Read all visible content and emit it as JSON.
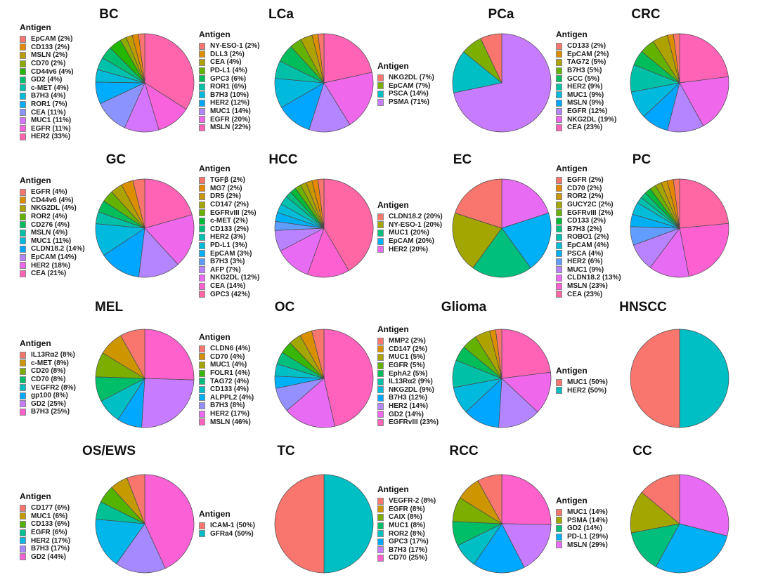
{
  "legend_title": "Antigen",
  "chart_data": [
    {
      "type": "pie",
      "title": "BC",
      "categories": [
        "EpCAM",
        "CD133",
        "MSLN",
        "CD70",
        "CD44v6",
        "GD2",
        "c-MET",
        "B7H3",
        "ROR1",
        "CEA",
        "MUC1",
        "EGFR",
        "HER2"
      ],
      "values": [
        2,
        2,
        2,
        2,
        4,
        4,
        4,
        4,
        7,
        11,
        11,
        11,
        33
      ],
      "labels": [
        "EpCAM (2%)",
        "CD133 (2%)",
        "MSLN (2%)",
        "CD70 (2%)",
        "CD44v6 (4%)",
        "GD2 (4%)",
        "c-MET (4%)",
        "B7H3 (4%)",
        "ROR1 (7%)",
        "CEA (11%)",
        "MUC1 (11%)",
        "EGFR (11%)",
        "HER2 (33%)"
      ]
    },
    {
      "type": "pie",
      "title": "LCa",
      "categories": [
        "NY-ESO-1",
        "DLL3",
        "CEA",
        "PD-L1",
        "GPC3",
        "ROR1",
        "B7H3",
        "HER2",
        "MUC1",
        "EGFR",
        "MSLN"
      ],
      "values": [
        2,
        2,
        4,
        4,
        6,
        6,
        10,
        12,
        14,
        20,
        22
      ],
      "labels": [
        "NY-ESO-1 (2%)",
        "DLL3 (2%)",
        "CEA (4%)",
        "PD-L1 (4%)",
        "GPC3 (6%)",
        "ROR1 (6%)",
        "B7H3 (10%)",
        "HER2 (12%)",
        "MUC1 (14%)",
        "EGFR (20%)",
        "MSLN (22%)"
      ]
    },
    {
      "type": "pie",
      "title": "PCa",
      "categories": [
        "NKG2DL",
        "EpCAM",
        "PSCA",
        "PSMA"
      ],
      "values": [
        7,
        7,
        14,
        71
      ],
      "labels": [
        "NKG2DL (7%)",
        "EpCAM (7%)",
        "PSCA (14%)",
        "PSMA (71%)"
      ]
    },
    {
      "type": "pie",
      "title": "CRC",
      "categories": [
        "CD133",
        "EpCAM",
        "TAG72",
        "B7H3",
        "GCC",
        "HER2",
        "MUC1",
        "MSLN",
        "EGFR",
        "NKG2DL",
        "CEA"
      ],
      "values": [
        2,
        2,
        5,
        5,
        5,
        9,
        9,
        9,
        12,
        19,
        23
      ],
      "labels": [
        "CD133 (2%)",
        "EpCAM (2%)",
        "TAG72 (5%)",
        "B7H3 (5%)",
        "GCC (5%)",
        "HER2 (9%)",
        "MUC1 (9%)",
        "MSLN (9%)",
        "EGFR (12%)",
        "NKG2DL (19%)",
        "CEA (23%)"
      ]
    },
    {
      "type": "pie",
      "title": "GC",
      "categories": [
        "EGFR",
        "CD44v6",
        "NKG2DL",
        "ROR2",
        "CD276",
        "MSLN",
        "MUC1",
        "CLDN18.2",
        "EpCAM",
        "HER2",
        "CEA"
      ],
      "values": [
        4,
        4,
        4,
        4,
        4,
        4,
        11,
        14,
        14,
        18,
        21
      ],
      "labels": [
        "EGFR (4%)",
        "CD44v6 (4%)",
        "NKG2DL (4%)",
        "ROR2 (4%)",
        "CD276 (4%)",
        "MSLN (4%)",
        "MUC1 (11%)",
        "CLDN18.2 (14%)",
        "EpCAM (14%)",
        "HER2 (18%)",
        "CEA (21%)"
      ]
    },
    {
      "type": "pie",
      "title": "HCC",
      "categories": [
        "TGFβ",
        "MG7",
        "DR5",
        "CD147",
        "EGFRvIII",
        "c-MET",
        "CD133",
        "HER2",
        "PD-L1",
        "EpCAM",
        "B7H3",
        "AFP",
        "NKG2DL",
        "CEA",
        "GPC3"
      ],
      "values": [
        2,
        2,
        2,
        2,
        2,
        2,
        2,
        3,
        3,
        3,
        3,
        7,
        12,
        14,
        42
      ],
      "labels": [
        "TGFβ (2%)",
        "MG7 (2%)",
        "DR5 (2%)",
        "CD147 (2%)",
        "EGFRvIII (2%)",
        "c-MET (2%)",
        "CD133 (2%)",
        "HER2 (3%)",
        "PD-L1 (3%)",
        "EpCAM (3%)",
        "B7H3 (3%)",
        "AFP (7%)",
        "NKG2DL (12%)",
        "CEA (14%)",
        "GPC3 (42%)"
      ]
    },
    {
      "type": "pie",
      "title": "EC",
      "categories": [
        "CLDN18.2",
        "NY-ESO-1",
        "MUC1",
        "EpCAM",
        "HER2"
      ],
      "values": [
        20,
        20,
        20,
        20,
        20
      ],
      "labels": [
        "CLDN18.2 (20%)",
        "NY-ESO-1 (20%)",
        "MUC1 (20%)",
        "EpCAM (20%)",
        "HER2 (20%)"
      ]
    },
    {
      "type": "pie",
      "title": "PC",
      "categories": [
        "EGFR",
        "CD70",
        "ROR2",
        "GUCY2C",
        "EGFRvIII",
        "CD133",
        "B7H3",
        "ROBO1",
        "EpCAM",
        "PSCA",
        "HER2",
        "MUC1",
        "CLDN18.2",
        "MSLN",
        "CEA"
      ],
      "values": [
        2,
        2,
        2,
        2,
        2,
        2,
        2,
        2,
        4,
        4,
        6,
        9,
        13,
        23,
        23
      ],
      "labels": [
        "EGFR (2%)",
        "CD70 (2%)",
        "ROR2 (2%)",
        "GUCY2C (2%)",
        "EGFRvIII (2%)",
        "CD133 (2%)",
        "B7H3 (2%)",
        "ROBO1 (2%)",
        "EpCAM (4%)",
        "PSCA (4%)",
        "HER2 (6%)",
        "MUC1 (9%)",
        "CLDN18.2 (13%)",
        "MSLN (23%)",
        "CEA (23%)"
      ]
    },
    {
      "type": "pie",
      "title": "MEL",
      "categories": [
        "IL13Rα2",
        "c-MET",
        "CD20",
        "CD70",
        "VEGFR2",
        "gp100",
        "GD2",
        "B7H3"
      ],
      "values": [
        8,
        8,
        8,
        8,
        8,
        8,
        25,
        25
      ],
      "labels": [
        "IL13Rα2 (8%)",
        "c-MET (8%)",
        "CD20 (8%)",
        "CD70 (8%)",
        "VEGFR2 (8%)",
        "gp100 (8%)",
        "GD2 (25%)",
        "B7H3 (25%)"
      ]
    },
    {
      "type": "pie",
      "title": "OC",
      "categories": [
        "CLDN6",
        "CD70",
        "MUC1",
        "FOLR1",
        "TAG72",
        "CD133",
        "ALPPL2",
        "B7H3",
        "HER2",
        "MSLN"
      ],
      "values": [
        4,
        4,
        4,
        4,
        4,
        4,
        4,
        8,
        17,
        46
      ],
      "labels": [
        "CLDN6 (4%)",
        "CD70 (4%)",
        "MUC1 (4%)",
        "FOLR1 (4%)",
        "TAG72 (4%)",
        "CD133 (4%)",
        "ALPPL2 (4%)",
        "B7H3 (8%)",
        "HER2 (17%)",
        "MSLN (46%)"
      ]
    },
    {
      "type": "pie",
      "title": "Glioma",
      "categories": [
        "MMP2",
        "CD147",
        "MUC1",
        "EGFR",
        "EphA2",
        "IL13Rα2",
        "NKG2DL",
        "B7H3",
        "HER2",
        "GD2",
        "EGFRvIII"
      ],
      "values": [
        2,
        2,
        5,
        5,
        5,
        9,
        9,
        12,
        14,
        14,
        23
      ],
      "labels": [
        "MMP2 (2%)",
        "CD147 (2%)",
        "MUC1 (5%)",
        "EGFR (5%)",
        "EphA2 (5%)",
        "IL13Rα2 (9%)",
        "NKG2DL (9%)",
        "B7H3 (12%)",
        "HER2 (14%)",
        "GD2 (14%)",
        "EGFRvIII (23%)"
      ]
    },
    {
      "type": "pie",
      "title": "HNSCC",
      "categories": [
        "MUC1",
        "HER2"
      ],
      "values": [
        50,
        50
      ],
      "labels": [
        "MUC1 (50%)",
        "HER2 (50%)"
      ]
    },
    {
      "type": "pie",
      "title": "OS/EWS",
      "categories": [
        "CD177",
        "MUC1",
        "CD133",
        "EGFR",
        "HER2",
        "B7H3",
        "GD2"
      ],
      "values": [
        6,
        6,
        6,
        6,
        17,
        17,
        44
      ],
      "labels": [
        "CD177 (6%)",
        "MUC1 (6%)",
        "CD133 (6%)",
        "EGFR (6%)",
        "HER2 (17%)",
        "B7H3 (17%)",
        "GD2 (44%)"
      ]
    },
    {
      "type": "pie",
      "title": "TC",
      "categories": [
        "ICAM-1",
        "GFRa4"
      ],
      "values": [
        50,
        50
      ],
      "labels": [
        "ICAM-1 (50%)",
        "GFRa4 (50%)"
      ]
    },
    {
      "type": "pie",
      "title": "RCC",
      "categories": [
        "VEGFR-2",
        "EGFR",
        "CAIX",
        "MUC1",
        "ROR2",
        "GPC3",
        "B7H3",
        "CD70"
      ],
      "values": [
        8,
        8,
        8,
        8,
        8,
        17,
        17,
        25
      ],
      "labels": [
        "VEGFR-2 (8%)",
        "EGFR (8%)",
        "CAIX (8%)",
        "MUC1 (8%)",
        "ROR2 (8%)",
        "GPC3 (17%)",
        "B7H3 (17%)",
        "CD70 (25%)"
      ]
    },
    {
      "type": "pie",
      "title": "CC",
      "categories": [
        "MUC1",
        "PSMA",
        "GD2",
        "PD-L1",
        "MSLN"
      ],
      "values": [
        14,
        14,
        14,
        29,
        29
      ],
      "labels": [
        "MUC1 (14%)",
        "PSMA (14%)",
        "GD2 (14%)",
        "PD-L1 (29%)",
        "MSLN (29%)"
      ]
    }
  ]
}
